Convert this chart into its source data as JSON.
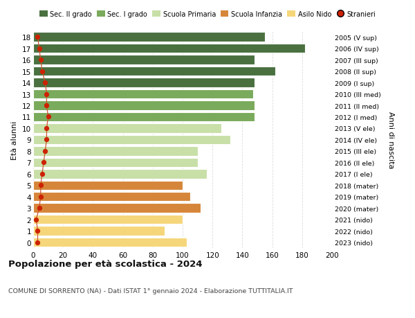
{
  "ages": [
    18,
    17,
    16,
    15,
    14,
    13,
    12,
    11,
    10,
    9,
    8,
    7,
    6,
    5,
    4,
    3,
    2,
    1,
    0
  ],
  "bar_values": [
    155,
    182,
    148,
    162,
    148,
    147,
    148,
    148,
    126,
    132,
    110,
    110,
    116,
    100,
    105,
    112,
    100,
    88,
    103
  ],
  "stranieri": [
    3,
    4,
    5,
    6,
    8,
    9,
    9,
    10,
    9,
    9,
    8,
    7,
    6,
    5,
    5,
    4,
    2,
    3,
    3
  ],
  "bar_colors": [
    "#4a7040",
    "#4a7040",
    "#4a7040",
    "#4a7040",
    "#4a7040",
    "#7aaa5c",
    "#7aaa5c",
    "#7aaa5c",
    "#c8dfa8",
    "#c8dfa8",
    "#c8dfa8",
    "#c8dfa8",
    "#c8dfa8",
    "#d6863a",
    "#d6863a",
    "#d6863a",
    "#f5d67a",
    "#f5d67a",
    "#f5d67a"
  ],
  "right_labels": [
    "2005 (V sup)",
    "2006 (IV sup)",
    "2007 (III sup)",
    "2008 (II sup)",
    "2009 (I sup)",
    "2010 (III med)",
    "2011 (II med)",
    "2012 (I med)",
    "2013 (V ele)",
    "2014 (IV ele)",
    "2015 (III ele)",
    "2016 (II ele)",
    "2017 (I ele)",
    "2018 (mater)",
    "2019 (mater)",
    "2020 (mater)",
    "2021 (nido)",
    "2022 (nido)",
    "2023 (nido)"
  ],
  "legend_labels": [
    "Sec. II grado",
    "Sec. I grado",
    "Scuola Primaria",
    "Scuola Infanzia",
    "Asilo Nido",
    "Stranieri"
  ],
  "legend_colors": [
    "#4a7040",
    "#7aaa5c",
    "#c8dfa8",
    "#d6863a",
    "#f5d67a",
    "#cc2200"
  ],
  "ylabel_left": "Età alunni",
  "ylabel_right": "Anni di nascita",
  "title": "Popolazione per età scolastica - 2024",
  "subtitle": "COMUNE DI SORRENTO (NA) - Dati ISTAT 1° gennaio 2024 - Elaborazione TUTTITALIA.IT",
  "xlim": [
    0,
    200
  ],
  "xticks": [
    0,
    20,
    40,
    60,
    80,
    100,
    120,
    140,
    160,
    180,
    200
  ],
  "bg_color": "#ffffff",
  "grid_color": "#dddddd",
  "stranieri_color": "#cc2200",
  "stranieri_line_color": "#cc5533"
}
